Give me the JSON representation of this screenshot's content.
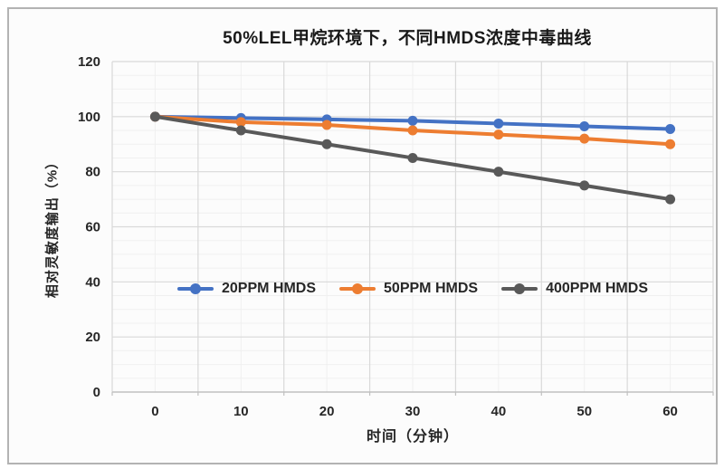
{
  "window": {
    "background": "#fcfcfc",
    "frame_border_color": "#b3b3b3"
  },
  "chart_data": {
    "type": "line",
    "title": "50%LEL甲烷环境下，不同HMDS浓度中毒曲线",
    "xlabel": "时间（分钟）",
    "ylabel": "相对灵敏度输出（%）",
    "x_categories": [
      "0",
      "10",
      "20",
      "30",
      "40",
      "50",
      "60"
    ],
    "x_values": [
      0,
      10,
      20,
      30,
      40,
      50,
      60
    ],
    "ylim": [
      0,
      120
    ],
    "y_tick_step": 20,
    "y_minor_step": 5,
    "y_tick_labels": [
      "0",
      "20",
      "40",
      "60",
      "80",
      "100",
      "120"
    ],
    "grid": "major and minor gridlines, horizontal and vertical",
    "legend_position": "inside plot, centered, below curves",
    "axis_color": "#c0c0c0",
    "major_grid_color": "#d9d9d9",
    "minor_grid_color": "#f0f0f0",
    "text_color": "#262626",
    "series": [
      {
        "name": "20PPM HMDS",
        "color": "#4472c4",
        "values": [
          100,
          99.5,
          99,
          98.5,
          97.5,
          96.5,
          95.5
        ]
      },
      {
        "name": "50PPM HMDS",
        "color": "#ed7d31",
        "values": [
          100,
          98,
          97,
          95,
          93.5,
          92,
          90
        ]
      },
      {
        "name": "400PPM HMDS",
        "color": "#595959",
        "values": [
          100,
          95,
          90,
          85,
          80,
          75,
          70
        ]
      }
    ]
  }
}
